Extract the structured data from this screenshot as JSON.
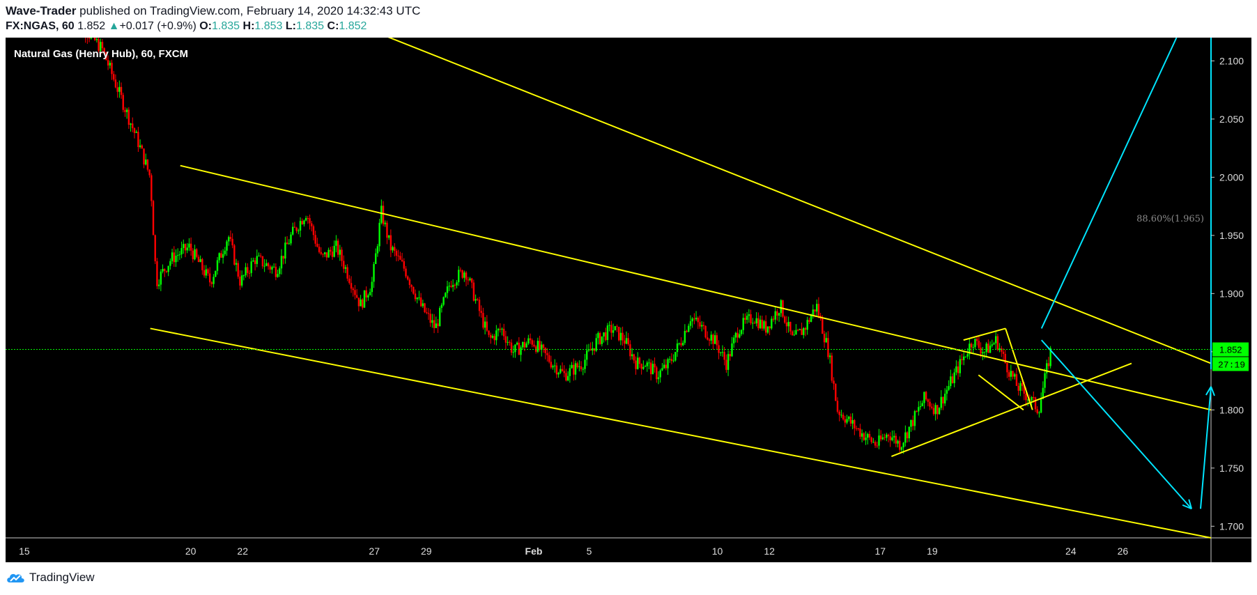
{
  "header": {
    "author": "Wave-Trader",
    "published_text": "published on TradingView.com, February 14, 2020 14:32:43 UTC",
    "symbol": "FX:NGAS, 60",
    "last": "1.852",
    "change": "+0.017 (+0.9%)",
    "open_label": "O:",
    "open": "1.835",
    "high_label": "H:",
    "high": "1.853",
    "low_label": "L:",
    "low": "1.835",
    "close_label": "C:",
    "close": "1.852"
  },
  "footer": {
    "brand": "TradingView"
  },
  "colors": {
    "background": "#000000",
    "up_candle": "#00ff00",
    "down_candle": "#ff0000",
    "trendline": "#ffff00",
    "projection": "#00e5ff",
    "price_label_bg": "#00ff00"
  },
  "chart_data": {
    "type": "candlestick",
    "title": "Natural Gas (Henry Hub), 60, FXCM",
    "y_axis": {
      "ticks": [
        "2.100",
        "2.050",
        "2.000",
        "1.950",
        "1.900",
        "1.850",
        "1.800",
        "1.750",
        "1.700"
      ],
      "range": [
        1.69,
        2.12
      ],
      "position": "right"
    },
    "x_axis": {
      "ticks": [
        "15",
        "20",
        "22",
        "27",
        "29",
        "Feb",
        "5",
        "10",
        "12",
        "17",
        "19",
        "24",
        "26"
      ]
    },
    "current_price": "1.852",
    "countdown": "27:19",
    "fib_label": "88.60%(1.965)",
    "grid": false,
    "price_path": [
      [
        0.0,
        2.14
      ],
      [
        1.0,
        2.11
      ],
      [
        1.6,
        2.07
      ],
      [
        2.2,
        2.03
      ],
      [
        2.6,
        2.0
      ],
      [
        2.8,
        1.91
      ],
      [
        3.3,
        1.93
      ],
      [
        3.9,
        1.94
      ],
      [
        4.6,
        1.91
      ],
      [
        5.2,
        1.95
      ],
      [
        5.6,
        1.91
      ],
      [
        6.1,
        1.93
      ],
      [
        6.8,
        1.92
      ],
      [
        7.3,
        1.95
      ],
      [
        7.8,
        1.97
      ],
      [
        8.3,
        1.93
      ],
      [
        8.8,
        1.94
      ],
      [
        9.3,
        1.91
      ],
      [
        9.6,
        1.89
      ],
      [
        10.0,
        1.91
      ],
      [
        10.3,
        1.97
      ],
      [
        10.6,
        1.94
      ],
      [
        11.1,
        1.92
      ],
      [
        11.6,
        1.89
      ],
      [
        12.1,
        1.87
      ],
      [
        12.6,
        1.91
      ],
      [
        13.1,
        1.92
      ],
      [
        13.5,
        1.89
      ],
      [
        13.9,
        1.86
      ],
      [
        14.3,
        1.87
      ],
      [
        14.7,
        1.85
      ],
      [
        15.3,
        1.86
      ],
      [
        16.0,
        1.84
      ],
      [
        16.4,
        1.83
      ],
      [
        17.0,
        1.84
      ],
      [
        17.5,
        1.86
      ],
      [
        18.0,
        1.87
      ],
      [
        18.4,
        1.86
      ],
      [
        18.8,
        1.84
      ],
      [
        19.1,
        1.84
      ],
      [
        19.5,
        1.83
      ],
      [
        19.9,
        1.84
      ],
      [
        20.3,
        1.86
      ],
      [
        20.6,
        1.88
      ],
      [
        21.0,
        1.87
      ],
      [
        21.4,
        1.86
      ],
      [
        21.8,
        1.84
      ],
      [
        22.2,
        1.87
      ],
      [
        22.7,
        1.88
      ],
      [
        23.1,
        1.87
      ],
      [
        23.6,
        1.89
      ],
      [
        24.0,
        1.86
      ],
      [
        24.4,
        1.87
      ],
      [
        24.8,
        1.89
      ],
      [
        25.2,
        1.85
      ],
      [
        25.5,
        1.8
      ],
      [
        25.9,
        1.79
      ],
      [
        26.3,
        1.78
      ],
      [
        26.8,
        1.77
      ],
      [
        27.2,
        1.78
      ],
      [
        27.6,
        1.77
      ],
      [
        28.0,
        1.79
      ],
      [
        28.4,
        1.81
      ],
      [
        28.8,
        1.8
      ],
      [
        29.2,
        1.82
      ],
      [
        29.6,
        1.84
      ],
      [
        30.0,
        1.86
      ],
      [
        30.4,
        1.85
      ],
      [
        30.8,
        1.86
      ],
      [
        31.1,
        1.84
      ],
      [
        31.5,
        1.82
      ],
      [
        31.9,
        1.81
      ],
      [
        32.2,
        1.8
      ],
      [
        32.6,
        1.85
      ]
    ],
    "trendlines": [
      {
        "name": "outer-resistance",
        "color": "yellow",
        "points": [
          [
            9.6,
            2.13
          ],
          [
            45.0,
            1.84
          ]
        ]
      },
      {
        "name": "channel-top",
        "color": "yellow",
        "points": [
          [
            3.6,
            2.01
          ],
          [
            44.4,
            1.8
          ]
        ]
      },
      {
        "name": "channel-bottom",
        "color": "yellow",
        "points": [
          [
            2.6,
            1.87
          ],
          [
            43.0,
            1.69
          ]
        ]
      },
      {
        "name": "rising-support",
        "color": "yellow",
        "points": [
          [
            27.3,
            1.76
          ],
          [
            35.3,
            1.84
          ]
        ]
      },
      {
        "name": "flag-upper",
        "color": "yellow",
        "points": [
          [
            29.7,
            1.86
          ],
          [
            31.1,
            1.87
          ]
        ]
      },
      {
        "name": "flag-lower",
        "color": "yellow",
        "points": [
          [
            30.2,
            1.83
          ],
          [
            31.7,
            1.8
          ]
        ]
      },
      {
        "name": "flag-right",
        "color": "yellow",
        "points": [
          [
            31.1,
            1.87
          ],
          [
            32.0,
            1.8
          ]
        ]
      }
    ],
    "projections": [
      {
        "name": "up-arrow-1",
        "points": [
          [
            32.3,
            1.87
          ],
          [
            36.8,
            2.12
          ]
        ]
      },
      {
        "name": "down-arrow",
        "points": [
          [
            32.3,
            1.86
          ],
          [
            37.3,
            1.715
          ]
        ],
        "arrow": true
      },
      {
        "name": "rebound-arrow",
        "points": [
          [
            37.6,
            1.715
          ],
          [
            39.3,
            1.82
          ]
        ],
        "arrow": true
      },
      {
        "name": "up-arrow-2",
        "points": [
          [
            39.5,
            1.835
          ],
          [
            44.4,
            2.12
          ]
        ]
      }
    ]
  }
}
